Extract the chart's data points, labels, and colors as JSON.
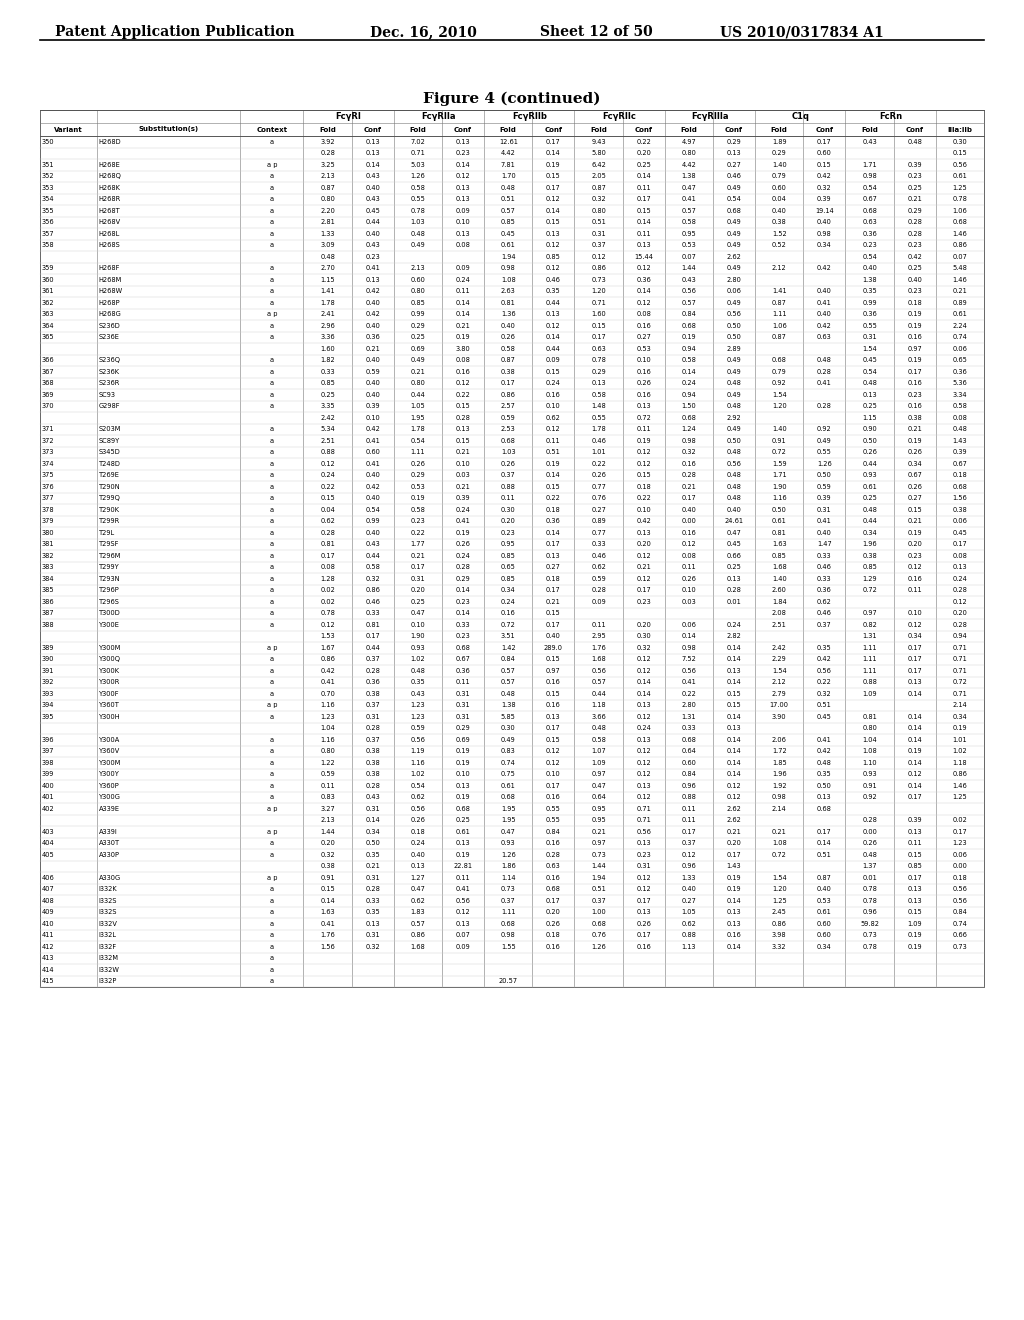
{
  "title_header": "Patent Application Publication",
  "title_date": "Dec. 16, 2010",
  "title_sheet": "Sheet 12 of 50",
  "title_patent": "US 2010/0317834 A1",
  "figure_title": "Figure 4 (continued)",
  "background_color": "#ffffff",
  "rows": [
    [
      "350",
      "H268D",
      "a",
      "3.92",
      "0.13",
      "7.02",
      "0.13",
      "12.61",
      "0.17",
      "9.43",
      "0.22",
      "4.97",
      "0.29",
      "1.89",
      "0.17",
      "0.43",
      "0.48",
      "0.30"
    ],
    [
      "",
      "",
      "",
      "0.28",
      "0.13",
      "0.71",
      "0.23",
      "4.42",
      "0.14",
      "5.80",
      "0.20",
      "0.80",
      "0.13",
      "0.29",
      "0.60",
      "",
      "",
      "0.15"
    ],
    [
      "351",
      "H268E",
      "a p",
      "3.25",
      "0.14",
      "5.03",
      "0.14",
      "7.81",
      "0.19",
      "6.42",
      "0.25",
      "4.42",
      "0.27",
      "1.40",
      "0.15",
      "1.71",
      "0.39",
      "0.56"
    ],
    [
      "352",
      "H268Q",
      "a",
      "2.13",
      "0.43",
      "1.26",
      "0.12",
      "1.70",
      "0.15",
      "2.05",
      "0.14",
      "1.38",
      "0.46",
      "0.79",
      "0.42",
      "0.98",
      "0.23",
      "0.61"
    ],
    [
      "353",
      "H268K",
      "a",
      "0.87",
      "0.40",
      "0.58",
      "0.13",
      "0.48",
      "0.17",
      "0.87",
      "0.11",
      "0.47",
      "0.49",
      "0.60",
      "0.32",
      "0.54",
      "0.25",
      "1.25"
    ],
    [
      "354",
      "H268R",
      "a",
      "0.80",
      "0.43",
      "0.55",
      "0.13",
      "0.51",
      "0.12",
      "0.32",
      "0.17",
      "0.41",
      "0.54",
      "0.04",
      "0.39",
      "0.67",
      "0.21",
      "0.78"
    ],
    [
      "355",
      "H268T",
      "a",
      "2.20",
      "0.45",
      "0.78",
      "0.09",
      "0.57",
      "0.14",
      "0.80",
      "0.15",
      "0.57",
      "0.68",
      "0.40",
      "19.14",
      "0.68",
      "0.29",
      "1.06"
    ],
    [
      "356",
      "H268V",
      "a",
      "2.81",
      "0.44",
      "1.03",
      "0.10",
      "0.85",
      "0.15",
      "0.51",
      "0.14",
      "0.58",
      "0.49",
      "0.38",
      "0.40",
      "0.63",
      "0.28",
      "0.68"
    ],
    [
      "357",
      "H268L",
      "a",
      "1.33",
      "0.40",
      "0.48",
      "0.13",
      "0.45",
      "0.13",
      "0.31",
      "0.11",
      "0.95",
      "0.49",
      "1.52",
      "0.98",
      "0.36",
      "0.28",
      "1.46"
    ],
    [
      "358",
      "H268S",
      "a",
      "3.09",
      "0.43",
      "0.49",
      "0.08",
      "0.61",
      "0.12",
      "0.37",
      "0.13",
      "0.53",
      "0.49",
      "0.52",
      "0.34",
      "0.23",
      "0.23",
      "0.86"
    ],
    [
      "",
      "",
      "",
      "0.48",
      "0.23",
      "",
      "",
      "1.94",
      "0.85",
      "0.12",
      "15.44",
      "0.07",
      "2.62",
      "",
      "",
      "0.54",
      "0.42",
      "0.07"
    ],
    [
      "359",
      "H268F",
      "a",
      "2.70",
      "0.41",
      "2.13",
      "0.09",
      "0.98",
      "0.12",
      "0.86",
      "0.12",
      "1.44",
      "0.49",
      "2.12",
      "0.42",
      "0.40",
      "0.25",
      "5.48"
    ],
    [
      "360",
      "H268M",
      "a",
      "1.15",
      "0.13",
      "0.60",
      "0.24",
      "1.08",
      "0.46",
      "0.73",
      "0.36",
      "0.43",
      "2.80",
      "",
      "",
      "1.38",
      "0.40",
      "1.46"
    ],
    [
      "361",
      "H268W",
      "a",
      "1.41",
      "0.42",
      "0.80",
      "0.11",
      "2.63",
      "0.35",
      "1.20",
      "0.14",
      "0.56",
      "0.06",
      "1.41",
      "0.40",
      "0.35",
      "0.23",
      "0.21"
    ],
    [
      "362",
      "H268P",
      "a",
      "1.78",
      "0.40",
      "0.85",
      "0.14",
      "0.81",
      "0.44",
      "0.71",
      "0.12",
      "0.57",
      "0.49",
      "0.87",
      "0.41",
      "0.99",
      "0.18",
      "0.89"
    ],
    [
      "363",
      "H268G",
      "a p",
      "2.41",
      "0.42",
      "0.99",
      "0.14",
      "1.36",
      "0.13",
      "1.60",
      "0.08",
      "0.84",
      "0.56",
      "1.11",
      "0.40",
      "0.36",
      "0.19",
      "0.61"
    ],
    [
      "364",
      "S236D",
      "a",
      "2.96",
      "0.40",
      "0.29",
      "0.21",
      "0.40",
      "0.12",
      "0.15",
      "0.16",
      "0.68",
      "0.50",
      "1.06",
      "0.42",
      "0.55",
      "0.19",
      "2.24"
    ],
    [
      "365",
      "S236E",
      "a",
      "3.36",
      "0.36",
      "0.25",
      "0.19",
      "0.26",
      "0.14",
      "0.17",
      "0.27",
      "0.19",
      "0.50",
      "0.87",
      "0.63",
      "0.31",
      "0.16",
      "0.74"
    ],
    [
      "",
      "",
      "",
      "1.60",
      "0.21",
      "0.69",
      "3.80",
      "0.58",
      "0.44",
      "0.63",
      "0.53",
      "0.94",
      "2.89",
      "",
      "",
      "1.54",
      "0.97",
      "0.06"
    ],
    [
      "366",
      "S236Q",
      "a",
      "1.82",
      "0.40",
      "0.49",
      "0.08",
      "0.87",
      "0.09",
      "0.78",
      "0.10",
      "0.58",
      "0.49",
      "0.68",
      "0.48",
      "0.45",
      "0.19",
      "0.65"
    ],
    [
      "367",
      "S236K",
      "a",
      "0.33",
      "0.59",
      "0.21",
      "0.16",
      "0.38",
      "0.15",
      "0.29",
      "0.16",
      "0.14",
      "0.49",
      "0.79",
      "0.28",
      "0.54",
      "0.17",
      "0.36"
    ],
    [
      "368",
      "S236R",
      "a",
      "0.85",
      "0.40",
      "0.80",
      "0.12",
      "0.17",
      "0.24",
      "0.13",
      "0.26",
      "0.24",
      "0.48",
      "0.92",
      "0.41",
      "0.48",
      "0.16",
      "5.36"
    ],
    [
      "369",
      "SC93",
      "a",
      "0.25",
      "0.40",
      "0.44",
      "0.22",
      "0.86",
      "0.16",
      "0.58",
      "0.16",
      "0.94",
      "0.49",
      "1.54",
      "",
      "0.13",
      "0.23",
      "3.34"
    ],
    [
      "370",
      "G298F",
      "a",
      "3.35",
      "0.39",
      "1.05",
      "0.15",
      "2.57",
      "0.10",
      "1.48",
      "0.13",
      "1.50",
      "0.48",
      "1.20",
      "0.28",
      "0.25",
      "0.16",
      "0.58"
    ],
    [
      "",
      "",
      "",
      "2.42",
      "0.10",
      "1.95",
      "0.28",
      "0.59",
      "0.62",
      "0.55",
      "0.72",
      "0.68",
      "2.92",
      "",
      "",
      "1.15",
      "0.38",
      "0.08"
    ],
    [
      "371",
      "S203M",
      "a",
      "5.34",
      "0.42",
      "1.78",
      "0.13",
      "2.53",
      "0.12",
      "1.78",
      "0.11",
      "1.24",
      "0.49",
      "1.40",
      "0.92",
      "0.90",
      "0.21",
      "0.48"
    ],
    [
      "372",
      "SC89Y",
      "a",
      "2.51",
      "0.41",
      "0.54",
      "0.15",
      "0.68",
      "0.11",
      "0.46",
      "0.19",
      "0.98",
      "0.50",
      "0.91",
      "0.49",
      "0.50",
      "0.19",
      "1.43"
    ],
    [
      "373",
      "S345D",
      "a",
      "0.88",
      "0.60",
      "1.11",
      "0.21",
      "1.03",
      "0.51",
      "1.01",
      "0.12",
      "0.32",
      "0.48",
      "0.72",
      "0.55",
      "0.26",
      "0.26",
      "0.39"
    ],
    [
      "374",
      "T248D",
      "a",
      "0.12",
      "0.41",
      "0.26",
      "0.10",
      "0.26",
      "0.19",
      "0.22",
      "0.12",
      "0.16",
      "0.56",
      "1.59",
      "1.26",
      "0.44",
      "0.34",
      "0.67"
    ],
    [
      "375",
      "T269E",
      "a",
      "0.24",
      "0.40",
      "0.29",
      "0.03",
      "0.37",
      "0.14",
      "0.26",
      "0.15",
      "0.28",
      "0.48",
      "1.71",
      "0.50",
      "0.93",
      "0.67",
      "0.18"
    ],
    [
      "376",
      "T290N",
      "a",
      "0.22",
      "0.42",
      "0.53",
      "0.21",
      "0.88",
      "0.15",
      "0.77",
      "0.18",
      "0.21",
      "0.48",
      "1.90",
      "0.59",
      "0.61",
      "0.26",
      "0.68"
    ],
    [
      "377",
      "T299Q",
      "a",
      "0.15",
      "0.40",
      "0.19",
      "0.39",
      "0.11",
      "0.22",
      "0.76",
      "0.22",
      "0.17",
      "0.48",
      "1.16",
      "0.39",
      "0.25",
      "0.27",
      "1.56"
    ],
    [
      "378",
      "T290K",
      "a",
      "0.04",
      "0.54",
      "0.58",
      "0.24",
      "0.30",
      "0.18",
      "0.27",
      "0.10",
      "0.40",
      "0.40",
      "0.50",
      "0.31",
      "0.48",
      "0.15",
      "0.38"
    ],
    [
      "379",
      "T299R",
      "a",
      "0.62",
      "0.99",
      "0.23",
      "0.41",
      "0.20",
      "0.36",
      "0.89",
      "0.42",
      "0.00",
      "24.61",
      "0.61",
      "0.41",
      "0.44",
      "0.21",
      "0.06"
    ],
    [
      "380",
      "T29L",
      "a",
      "0.28",
      "0.40",
      "0.22",
      "0.19",
      "0.23",
      "0.14",
      "0.77",
      "0.13",
      "0.16",
      "0.47",
      "0.81",
      "0.40",
      "0.34",
      "0.19",
      "0.45"
    ],
    [
      "381",
      "T29SF",
      "a",
      "0.81",
      "0.43",
      "1.77",
      "0.26",
      "0.95",
      "0.17",
      "0.33",
      "0.20",
      "0.12",
      "0.45",
      "1.63",
      "1.47",
      "1.96",
      "0.20",
      "0.17"
    ],
    [
      "382",
      "T296M",
      "a",
      "0.17",
      "0.44",
      "0.21",
      "0.24",
      "0.85",
      "0.13",
      "0.46",
      "0.12",
      "0.08",
      "0.66",
      "0.85",
      "0.33",
      "0.38",
      "0.23",
      "0.08"
    ],
    [
      "383",
      "T299Y",
      "a",
      "0.08",
      "0.58",
      "0.17",
      "0.28",
      "0.65",
      "0.27",
      "0.62",
      "0.21",
      "0.11",
      "0.25",
      "1.68",
      "0.46",
      "0.85",
      "0.12",
      "0.13"
    ],
    [
      "384",
      "T293N",
      "a",
      "1.28",
      "0.32",
      "0.31",
      "0.29",
      "0.85",
      "0.18",
      "0.59",
      "0.12",
      "0.26",
      "0.13",
      "1.40",
      "0.33",
      "1.29",
      "0.16",
      "0.24"
    ],
    [
      "385",
      "T296P",
      "a",
      "0.02",
      "0.86",
      "0.20",
      "0.14",
      "0.34",
      "0.17",
      "0.28",
      "0.17",
      "0.10",
      "0.28",
      "2.60",
      "0.36",
      "0.72",
      "0.11",
      "0.28"
    ],
    [
      "386",
      "T296S",
      "a",
      "0.02",
      "0.46",
      "0.25",
      "0.23",
      "0.24",
      "0.21",
      "0.09",
      "0.23",
      "0.03",
      "0.01",
      "1.84",
      "0.62",
      "",
      "",
      "0.12"
    ],
    [
      "387",
      "T300D",
      "a",
      "0.78",
      "0.33",
      "0.47",
      "0.14",
      "0.16",
      "0.15",
      "",
      "",
      "",
      "",
      "2.08",
      "0.46",
      "0.97",
      "0.10",
      "0.20"
    ],
    [
      "388",
      "Y300E",
      "a",
      "0.12",
      "0.81",
      "0.10",
      "0.33",
      "0.72",
      "0.17",
      "0.11",
      "0.20",
      "0.06",
      "0.24",
      "2.51",
      "0.37",
      "0.82",
      "0.12",
      "0.28"
    ],
    [
      "",
      "",
      "",
      "1.53",
      "0.17",
      "1.90",
      "0.23",
      "3.51",
      "0.40",
      "2.95",
      "0.30",
      "0.14",
      "2.82",
      "",
      "",
      "1.31",
      "0.34",
      "0.94"
    ],
    [
      "389",
      "Y300M",
      "a p",
      "1.67",
      "0.44",
      "0.93",
      "0.68",
      "1.42",
      "289.0",
      "1.76",
      "0.32",
      "0.98",
      "0.14",
      "2.42",
      "0.35",
      "1.11",
      "0.17",
      "0.71"
    ],
    [
      "390",
      "Y300Q",
      "a",
      "0.86",
      "0.37",
      "1.02",
      "0.67",
      "0.84",
      "0.15",
      "1.68",
      "0.12",
      "7.52",
      "0.14",
      "2.29",
      "0.42",
      "1.11",
      "0.17",
      "0.71"
    ],
    [
      "391",
      "Y300K",
      "a",
      "0.42",
      "0.28",
      "0.48",
      "0.36",
      "0.57",
      "0.97",
      "0.56",
      "0.12",
      "0.56",
      "0.13",
      "1.54",
      "0.56",
      "1.11",
      "0.17",
      "0.71"
    ],
    [
      "392",
      "Y300R",
      "a",
      "0.41",
      "0.36",
      "0.35",
      "0.11",
      "0.57",
      "0.16",
      "0.57",
      "0.14",
      "0.41",
      "0.14",
      "2.12",
      "0.22",
      "0.88",
      "0.13",
      "0.72"
    ],
    [
      "393",
      "Y300F",
      "a",
      "0.70",
      "0.38",
      "0.43",
      "0.31",
      "0.48",
      "0.15",
      "0.44",
      "0.14",
      "0.22",
      "0.15",
      "2.79",
      "0.32",
      "1.09",
      "0.14",
      "0.71"
    ],
    [
      "394",
      "Y360T",
      "a p",
      "1.16",
      "0.37",
      "1.23",
      "0.31",
      "1.38",
      "0.16",
      "1.18",
      "0.13",
      "2.80",
      "0.15",
      "17.00",
      "0.51",
      "",
      "",
      "2.14"
    ],
    [
      "395",
      "Y300H",
      "a",
      "1.23",
      "0.31",
      "1.23",
      "0.31",
      "5.85",
      "0.13",
      "3.66",
      "0.12",
      "1.31",
      "0.14",
      "3.90",
      "0.45",
      "0.81",
      "0.14",
      "0.34"
    ],
    [
      "",
      "",
      "",
      "1.04",
      "0.28",
      "0.59",
      "0.29",
      "0.30",
      "0.17",
      "0.48",
      "0.24",
      "0.33",
      "0.13",
      "",
      "",
      "0.80",
      "0.14",
      "0.19"
    ],
    [
      "396",
      "Y300A",
      "a",
      "1.16",
      "0.37",
      "0.56",
      "0.69",
      "0.49",
      "0.15",
      "0.58",
      "0.13",
      "0.68",
      "0.14",
      "2.06",
      "0.41",
      "1.04",
      "0.14",
      "1.01"
    ],
    [
      "397",
      "Y360V",
      "a",
      "0.80",
      "0.38",
      "1.19",
      "0.19",
      "0.83",
      "0.12",
      "1.07",
      "0.12",
      "0.64",
      "0.14",
      "1.72",
      "0.42",
      "1.08",
      "0.19",
      "1.02"
    ],
    [
      "398",
      "Y300M",
      "a",
      "1.22",
      "0.38",
      "1.16",
      "0.19",
      "0.74",
      "0.12",
      "1.09",
      "0.12",
      "0.60",
      "0.14",
      "1.85",
      "0.48",
      "1.10",
      "0.14",
      "1.18"
    ],
    [
      "399",
      "Y300Y",
      "a",
      "0.59",
      "0.38",
      "1.02",
      "0.10",
      "0.75",
      "0.10",
      "0.97",
      "0.12",
      "0.84",
      "0.14",
      "1.96",
      "0.35",
      "0.93",
      "0.12",
      "0.86"
    ],
    [
      "400",
      "Y360P",
      "a",
      "0.11",
      "0.28",
      "0.54",
      "0.13",
      "0.61",
      "0.17",
      "0.47",
      "0.13",
      "0.96",
      "0.12",
      "1.92",
      "0.50",
      "0.91",
      "0.14",
      "1.46"
    ],
    [
      "401",
      "Y300G",
      "a",
      "0.83",
      "0.43",
      "0.62",
      "0.19",
      "0.68",
      "0.16",
      "0.64",
      "0.12",
      "0.88",
      "0.12",
      "0.98",
      "0.13",
      "0.92",
      "0.17",
      "1.25"
    ],
    [
      "402",
      "A339E",
      "a p",
      "3.27",
      "0.31",
      "0.56",
      "0.68",
      "1.95",
      "0.55",
      "0.95",
      "0.71",
      "0.11",
      "2.62",
      "2.14",
      "0.68",
      "",
      "",
      ""
    ],
    [
      "",
      "",
      "",
      "2.13",
      "0.14",
      "0.26",
      "0.25",
      "1.95",
      "0.55",
      "0.95",
      "0.71",
      "0.11",
      "2.62",
      "",
      "",
      "0.28",
      "0.39",
      "0.02"
    ],
    [
      "403",
      "A339I",
      "a p",
      "1.44",
      "0.34",
      "0.18",
      "0.61",
      "0.47",
      "0.84",
      "0.21",
      "0.56",
      "0.17",
      "0.21",
      "0.21",
      "0.17",
      "0.00",
      "0.13",
      "0.17"
    ],
    [
      "404",
      "A330T",
      "a",
      "0.20",
      "0.50",
      "0.24",
      "0.13",
      "0.93",
      "0.16",
      "0.97",
      "0.13",
      "0.37",
      "0.20",
      "1.08",
      "0.14",
      "0.26",
      "0.11",
      "1.23"
    ],
    [
      "405",
      "A330P",
      "a",
      "0.32",
      "0.35",
      "0.40",
      "0.19",
      "1.26",
      "0.28",
      "0.73",
      "0.23",
      "0.12",
      "0.17",
      "0.72",
      "0.51",
      "0.48",
      "0.15",
      "0.06"
    ],
    [
      "",
      "",
      "",
      "0.38",
      "0.21",
      "0.13",
      "22.81",
      "1.86",
      "0.63",
      "1.44",
      "0.31",
      "0.96",
      "1.43",
      "",
      "",
      "1.37",
      "0.85",
      "0.00"
    ],
    [
      "406",
      "A330G",
      "a p",
      "0.91",
      "0.31",
      "1.27",
      "0.11",
      "1.14",
      "0.16",
      "1.94",
      "0.12",
      "1.33",
      "0.19",
      "1.54",
      "0.87",
      "0.01",
      "0.17",
      "0.18"
    ],
    [
      "407",
      "I332K",
      "a",
      "0.15",
      "0.28",
      "0.47",
      "0.41",
      "0.73",
      "0.68",
      "0.51",
      "0.12",
      "0.40",
      "0.19",
      "1.20",
      "0.40",
      "0.78",
      "0.13",
      "0.56"
    ],
    [
      "408",
      "I332S",
      "a",
      "0.14",
      "0.33",
      "0.62",
      "0.56",
      "0.37",
      "0.17",
      "0.37",
      "0.17",
      "0.27",
      "0.14",
      "1.25",
      "0.53",
      "0.78",
      "0.13",
      "0.56"
    ],
    [
      "409",
      "I332S",
      "a",
      "1.63",
      "0.35",
      "1.83",
      "0.12",
      "1.11",
      "0.20",
      "1.00",
      "0.13",
      "1.05",
      "0.13",
      "2.45",
      "0.61",
      "0.96",
      "0.15",
      "0.84"
    ],
    [
      "410",
      "I332V",
      "a",
      "0.41",
      "0.13",
      "0.57",
      "0.13",
      "0.68",
      "0.26",
      "0.68",
      "0.26",
      "0.62",
      "0.13",
      "0.86",
      "0.60",
      "59.82",
      "1.09",
      "0.74"
    ],
    [
      "411",
      "I332L",
      "a",
      "1.76",
      "0.31",
      "0.86",
      "0.07",
      "0.98",
      "0.18",
      "0.76",
      "0.17",
      "0.88",
      "0.16",
      "3.98",
      "0.60",
      "0.73",
      "0.19",
      "0.66"
    ],
    [
      "412",
      "I332F",
      "a",
      "1.56",
      "0.32",
      "1.68",
      "0.09",
      "1.55",
      "0.16",
      "1.26",
      "0.16",
      "1.13",
      "0.14",
      "3.32",
      "0.34",
      "0.78",
      "0.19",
      "0.73"
    ],
    [
      "413",
      "I332M",
      "a",
      "",
      "",
      "",
      "",
      "",
      "",
      "",
      "",
      "",
      "",
      "",
      "",
      "",
      "",
      ""
    ],
    [
      "414",
      "I332W",
      "a",
      "",
      "",
      "",
      "",
      "",
      "",
      "",
      "",
      "",
      "",
      "",
      "",
      "",
      "",
      ""
    ],
    [
      "415",
      "I332P",
      "a",
      "",
      "",
      "",
      "",
      "20.57",
      "",
      "",
      "",
      "",
      "",
      "",
      "",
      "",
      "",
      ""
    ]
  ]
}
